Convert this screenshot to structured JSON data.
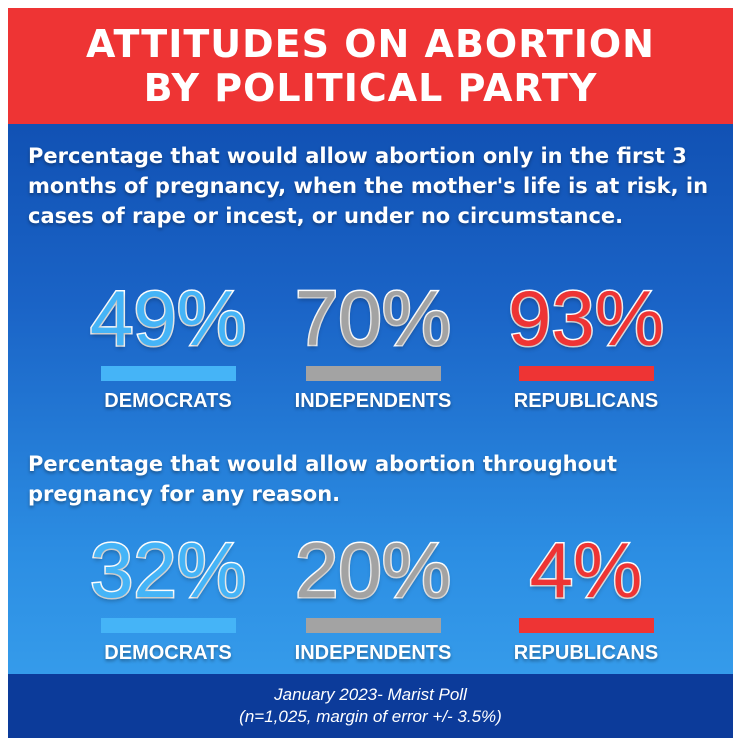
{
  "header": {
    "line1": "ATTITUDES ON ABORTION",
    "line2": "BY POLITICAL PARTY"
  },
  "colors": {
    "header_red": "#ee3434",
    "democrat_blue": "#45b4f7",
    "independent_gray": "#a3a3a3",
    "republican_red": "#ee3434"
  },
  "section1": {
    "question": "Percentage that would allow abortion only in the first 3 months of pregnancy, when the mother's life is at risk, in cases of rape or incest, or under no circumstance.",
    "stats": [
      {
        "party": "DEMOCRATS",
        "value": "49%"
      },
      {
        "party": "INDEPENDENTS",
        "value": "70%"
      },
      {
        "party": "REPUBLICANS",
        "value": "93%"
      }
    ]
  },
  "section2": {
    "question": "Percentage that would allow abortion throughout pregnancy for any reason.",
    "stats": [
      {
        "party": "DEMOCRATS",
        "value": "32%"
      },
      {
        "party": "INDEPENDENTS",
        "value": "20%"
      },
      {
        "party": "REPUBLICANS",
        "value": "4%"
      }
    ]
  },
  "footer": {
    "line1": "January 2023- Marist Poll",
    "line2": "(n=1,025, margin of error +/- 3.5%)"
  }
}
